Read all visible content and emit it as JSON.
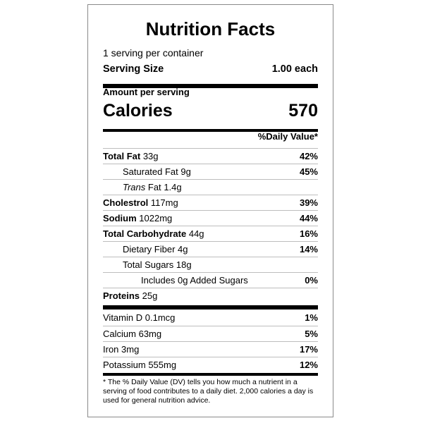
{
  "title": "Nutrition Facts",
  "servings_per_container": "1 serving per container",
  "serving_size": {
    "label": "Serving Size",
    "value": "1.00 each"
  },
  "amount_per_serving": "Amount per serving",
  "calories": {
    "label": "Calories",
    "value": "570"
  },
  "daily_value_header": "%Daily Value*",
  "nutrients": [
    {
      "name": "Total Fat",
      "amount": "33g",
      "dv": "42%"
    },
    {
      "name": "Saturated Fat",
      "amount": "9g",
      "dv": "45%"
    },
    {
      "name_italic": "Trans",
      "name": "Fat",
      "amount": "1.4g",
      "dv": ""
    },
    {
      "name": "Cholestrol",
      "amount": "117mg",
      "dv": "39%"
    },
    {
      "name": "Sodium",
      "amount": "1022mg",
      "dv": "44%"
    },
    {
      "name": "Total Carbohydrate",
      "amount": "44g",
      "dv": "16%"
    },
    {
      "name": "Dietary Fiber",
      "amount": "4g",
      "dv": "14%"
    },
    {
      "name": "Total Sugars",
      "amount": "18g",
      "dv": ""
    },
    {
      "name": "Includes 0g Added Sugars",
      "amount": "",
      "dv": "0%"
    },
    {
      "name": "Proteins",
      "amount": "25g",
      "dv": ""
    }
  ],
  "vitamins": [
    {
      "name": "Vitamin D",
      "amount": "0.1mcg",
      "dv": "1%"
    },
    {
      "name": "Calcium",
      "amount": "63mg",
      "dv": "5%"
    },
    {
      "name": "Iron",
      "amount": "3mg",
      "dv": "17%"
    },
    {
      "name": "Potassium",
      "amount": "555mg",
      "dv": "12%"
    }
  ],
  "footnote": "* The % Daily Value (DV) tells you how much a nutrient in a serving of food contributes to a daily diet. 2,000 calories a day is used for general nutrition advice."
}
